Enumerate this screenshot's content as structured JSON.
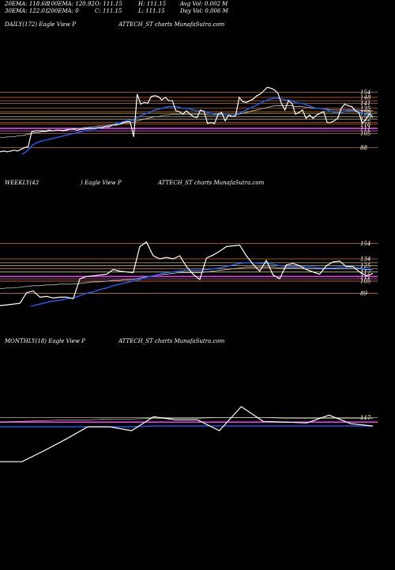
{
  "header": {
    "ema20": "20EMA: 118.68",
    "ema100": "100EMA: 120.92",
    "open": "O: 111.15",
    "high": "H: 111.15",
    "avg_vol": "Avg Vol: 0.002  M",
    "ema30": "30EMA: 122.01",
    "ema200": "200EMA: 0",
    "close": "C: 111.15",
    "low": "L: 111.15",
    "day_vol": "Day Vol: 0.006  M"
  },
  "colors": {
    "price_line": "#ffffff",
    "ema_blue": "#1f5fff",
    "level_orange": "#c8742a",
    "level_magenta": "#e040e0",
    "level_yellow": "#c8b45a",
    "background": "#000000"
  },
  "chart_data": [
    {
      "type": "line",
      "title_left": "DAILY(172) Eagle   View  P",
      "title_right": "ATTECH_ST charts MunafaSutra.com",
      "ylabels": [
        "154",
        "148",
        "141",
        "135",
        "129",
        "122",
        "116",
        "111",
        "105",
        "88"
      ],
      "ylim": [
        80,
        165
      ],
      "levels": [
        154,
        148,
        144,
        141,
        135,
        131,
        129,
        125,
        122,
        118,
        116,
        111,
        108,
        105,
        88
      ],
      "price": [
        83,
        84,
        83,
        84,
        85,
        84,
        86,
        88,
        89,
        107,
        108,
        108,
        108,
        108,
        109,
        108,
        109,
        109,
        108,
        109,
        110,
        110,
        109,
        110,
        110,
        111,
        111,
        111,
        112,
        112,
        113,
        113,
        115,
        115,
        116,
        118,
        119,
        119,
        101,
        152,
        140,
        142,
        141,
        149,
        150,
        149,
        145,
        148,
        144,
        144,
        132,
        131,
        128,
        132,
        128,
        125,
        124,
        133,
        131,
        117,
        118,
        117,
        128,
        130,
        120,
        127,
        125,
        126,
        148,
        143,
        142,
        144,
        146,
        150,
        152,
        156,
        160,
        159,
        157,
        153,
        141,
        133,
        144,
        141,
        128,
        130,
        133,
        123,
        127,
        123,
        127,
        129,
        131,
        118,
        118,
        120,
        123,
        135,
        140,
        138,
        137,
        132,
        130,
        117,
        122,
        128,
        124
      ],
      "ema_blue": [
        72,
        73,
        74,
        75,
        76,
        77,
        79,
        82,
        85,
        90,
        93,
        95,
        96,
        97,
        98,
        99,
        100,
        101,
        102,
        103,
        104,
        105,
        106,
        107,
        108,
        109,
        110,
        110,
        111,
        112,
        113,
        114,
        115,
        117,
        118,
        119,
        120,
        121,
        120,
        124,
        126,
        128,
        129,
        131,
        133,
        134,
        135,
        136,
        137,
        137,
        137,
        136,
        135,
        135,
        134,
        133,
        132,
        132,
        132,
        130,
        129,
        128,
        128,
        128,
        127,
        127,
        127,
        127,
        129,
        131,
        133,
        135,
        137,
        139,
        141,
        143,
        145,
        146,
        147,
        147,
        146,
        145,
        145,
        144,
        142,
        141,
        141,
        139,
        138,
        136,
        135,
        135,
        134,
        133,
        131,
        130,
        130,
        130,
        131,
        132,
        132,
        132,
        131,
        129,
        128,
        128,
        127
      ],
      "ema_thin": [
        100,
        100,
        101,
        101,
        101,
        102,
        102,
        103,
        104,
        105,
        106,
        106,
        107,
        107,
        108,
        108,
        109,
        109,
        109,
        110,
        110,
        111,
        111,
        111,
        112,
        112,
        113,
        113,
        114,
        114,
        114,
        115,
        115,
        116,
        116,
        117,
        117,
        118,
        118,
        120,
        121,
        122,
        123,
        124,
        125,
        125,
        126,
        127,
        127,
        128,
        128,
        128,
        128,
        128,
        128,
        128,
        128,
        128,
        128,
        127,
        127,
        127,
        127,
        127,
        127,
        127,
        127,
        127,
        128,
        129,
        130,
        131,
        132,
        133,
        134,
        135,
        136,
        137,
        138,
        138,
        138,
        138,
        138,
        138,
        137,
        137,
        137,
        136,
        136,
        135,
        135,
        135,
        134,
        134,
        133,
        133,
        133,
        133,
        133,
        133,
        133,
        133,
        133,
        132,
        132,
        132,
        132
      ]
    },
    {
      "type": "line",
      "title_left": "WEEKLY(43",
      "title_mid": ") Eagle   View  P",
      "title_right": "ATTECH_ST charts MunafaSutra.com",
      "ylabels": [
        "154",
        "134",
        "125",
        "117",
        "111",
        "105",
        "89"
      ],
      "ylim": [
        72,
        165
      ],
      "levels": [
        154,
        134,
        129,
        125,
        121,
        117,
        111,
        108,
        105,
        89
      ],
      "price": [
        73,
        74,
        75,
        76,
        90,
        92,
        84,
        85,
        83,
        84,
        84,
        82,
        108,
        111,
        112,
        113,
        114,
        120,
        118,
        117,
        116,
        150,
        156,
        138,
        134,
        136,
        134,
        138,
        124,
        114,
        107,
        135,
        139,
        144,
        150,
        151,
        152,
        138,
        127,
        118,
        132,
        113,
        108,
        126,
        128,
        125,
        120,
        117,
        114,
        125,
        130,
        131,
        124,
        124,
        117,
        112,
        115
      ],
      "ema_blue": [
        60,
        62,
        64,
        66,
        70,
        73,
        75,
        77,
        79,
        80,
        82,
        83,
        86,
        89,
        91,
        94,
        96,
        99,
        101,
        103,
        105,
        107,
        110,
        112,
        114,
        116,
        117,
        118,
        119,
        119,
        119,
        120,
        121,
        122,
        124,
        126,
        128,
        129,
        129,
        128,
        128,
        127,
        125,
        124,
        124,
        124,
        123,
        123,
        122,
        122,
        122,
        123,
        123,
        123,
        122,
        121,
        120
      ],
      "ema_thin": [
        95,
        96,
        96,
        97,
        98,
        99,
        99,
        100,
        100,
        101,
        101,
        101,
        102,
        103,
        104,
        104,
        105,
        106,
        106,
        107,
        107,
        109,
        111,
        112,
        113,
        114,
        115,
        116,
        116,
        116,
        116,
        117,
        118,
        119,
        120,
        121,
        122,
        123,
        123,
        123,
        123,
        123,
        122,
        122,
        122,
        122,
        121,
        121,
        121,
        121,
        121,
        121,
        121,
        121,
        121,
        120,
        120
      ]
    },
    {
      "type": "line",
      "title_left": "MONTHLY(18) Eagle   View  P",
      "title_right": "ATTECH_ST charts MunafaSutra.com",
      "ylabels": [
        "117"
      ],
      "ylim": [
        48,
        150
      ],
      "levels": [
        117,
        111
      ],
      "price": [
        60,
        60,
        74,
        89,
        105,
        105,
        100,
        118,
        114,
        114,
        100,
        131,
        112,
        111,
        110,
        120,
        109,
        106
      ],
      "ema_blue": [
        105,
        105,
        105,
        105,
        105,
        105,
        105,
        106,
        106,
        106,
        106,
        106,
        106,
        106,
        106,
        106,
        106,
        106
      ],
      "ema_thin": [
        111,
        112,
        113,
        114,
        114,
        115,
        115,
        116,
        116,
        116,
        117,
        117,
        117,
        116,
        116,
        116,
        116,
        116
      ]
    }
  ]
}
